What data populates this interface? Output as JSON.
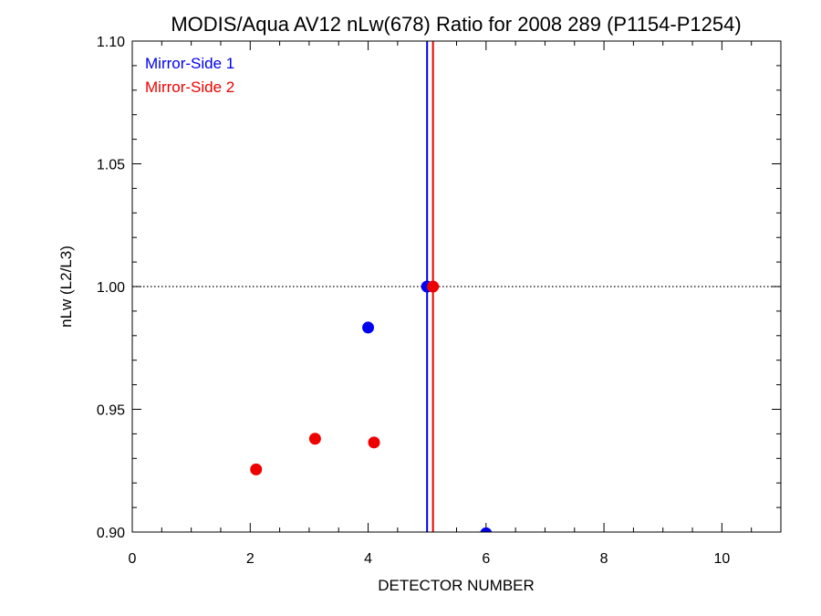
{
  "chart_data": {
    "type": "scatter",
    "title": "MODIS/Aqua AV12 nLw(678) Ratio for 2008 289 (P1154-P1254)",
    "xlabel": "DETECTOR NUMBER",
    "ylabel": "nLw (L2/L3)",
    "xlim": [
      0,
      11
    ],
    "ylim": [
      0.9,
      1.1
    ],
    "x_major_ticks": [
      0,
      2,
      4,
      6,
      8,
      10
    ],
    "x_tick_labels": [
      "0",
      "2",
      "4",
      "6",
      "8",
      "10"
    ],
    "x_minor_step": 0.5,
    "y_major_ticks": [
      0.9,
      0.95,
      1.0,
      1.05,
      1.1
    ],
    "y_tick_labels": [
      "0.90",
      "0.95",
      "1.00",
      "1.05",
      "1.10"
    ],
    "y_minor_step": 0.01,
    "reference_line_y": 1.0,
    "grid": false,
    "legend_position": "top-left",
    "series": [
      {
        "name": "Mirror-Side 1",
        "color": "#0000ee",
        "points": [
          {
            "x": 4.0,
            "y": 0.9833
          },
          {
            "x": 5.0,
            "y": 1.0
          },
          {
            "x": 6.0,
            "y": 0.8995
          }
        ],
        "vertical_line_x": 5.0
      },
      {
        "name": "Mirror-Side 2",
        "color": "#ee0000",
        "points": [
          {
            "x": 2.1,
            "y": 0.9255
          },
          {
            "x": 3.1,
            "y": 0.938
          },
          {
            "x": 4.1,
            "y": 0.9365
          },
          {
            "x": 5.1,
            "y": 1.0
          }
        ],
        "vertical_line_x": 5.1
      }
    ]
  }
}
